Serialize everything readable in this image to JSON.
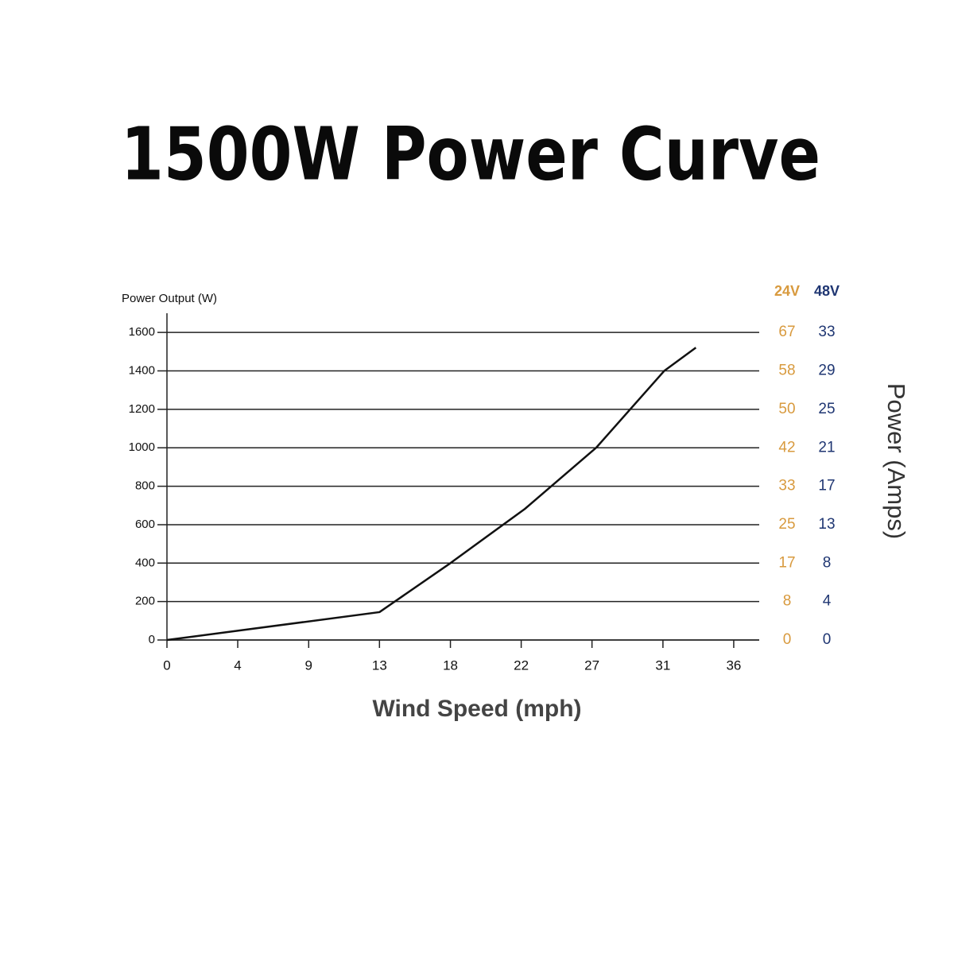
{
  "chart_data": {
    "type": "line",
    "title": "1500W Power Curve",
    "y_label": "Power Output (W)",
    "x_label": "Wind Speed (mph)",
    "y2_label": "Power (Amps)",
    "x": [
      0,
      13.42,
      17.9,
      22.6,
      27.1,
      31.4,
      33.4
    ],
    "series": [
      {
        "color": "#111111",
        "values": [
          0,
          145,
          400,
          682,
          1000,
          1400,
          1521
        ]
      }
    ],
    "xlim": [
      0,
      37.4
    ],
    "xticks": [
      0,
      {
        "value": 4.47,
        "label": "4"
      },
      {
        "value": 8.95,
        "label": "9"
      },
      {
        "value": 13.42,
        "label": "13"
      },
      {
        "value": 17.9,
        "label": "18"
      },
      {
        "value": 22.37,
        "label": "22"
      },
      {
        "value": 26.84,
        "label": "27"
      },
      {
        "value": 31.32,
        "label": "31"
      },
      {
        "value": 35.79,
        "label": "36"
      }
    ],
    "ylim": [
      0,
      1700
    ],
    "yticks": [
      0,
      200,
      400,
      600,
      800,
      1000,
      1200,
      1400,
      1600
    ],
    "grid": true,
    "amp_columns": [
      {
        "name": "24V",
        "color": "#d89a3e",
        "labels": [
          0,
          8,
          17,
          25,
          33,
          42,
          50,
          58,
          67
        ]
      },
      {
        "name": "48V",
        "color": "#1f3672",
        "labels": [
          0,
          4,
          8,
          13,
          17,
          21,
          25,
          29,
          33
        ]
      }
    ]
  }
}
